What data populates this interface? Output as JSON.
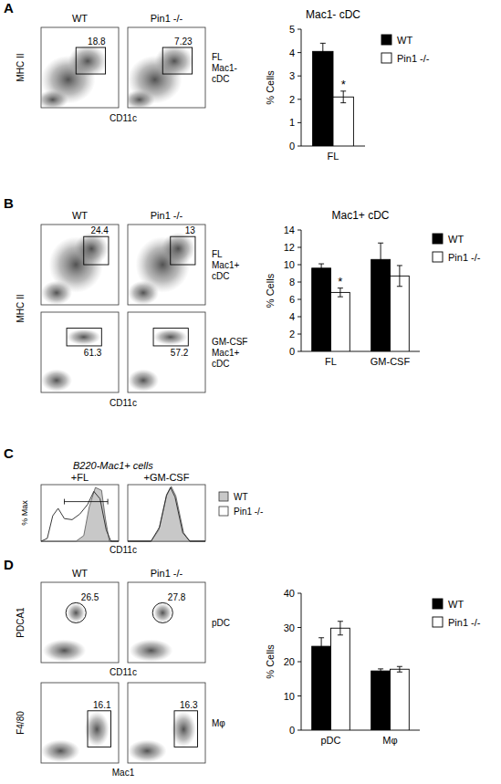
{
  "panels": [
    {
      "label": "A",
      "columns": [
        "WT",
        "Pin1 -/-"
      ],
      "x_label": "CD11c",
      "y_label": "MHC II",
      "rows": [
        {
          "side_label": [
            "FL",
            "Mac1-",
            "cDC"
          ],
          "gate_values": [
            18.8,
            7.23
          ]
        }
      ]
    },
    {
      "label": "B",
      "columns": [
        "WT",
        "Pin1 -/-"
      ],
      "x_label": "CD11c",
      "y_label": "MHC II",
      "rows": [
        {
          "side_label": [
            "FL",
            "Mac1+",
            "cDC"
          ],
          "gate_values": [
            24.4,
            13
          ]
        },
        {
          "side_label": [
            "GM-CSF",
            "Mac1+",
            "cDC"
          ],
          "gate_values": [
            61.3,
            57.2
          ]
        }
      ]
    },
    {
      "label": "C",
      "title": "B220-Mac1+ cells",
      "columns": [
        "+FL",
        "+GM-CSF"
      ],
      "x_label": "CD11c",
      "y_label": "% Max",
      "legend": [
        {
          "name": "WT",
          "color": "#c8c8c8"
        },
        {
          "name": "Pin1 -/-",
          "color": "#ffffff"
        }
      ]
    },
    {
      "label": "D",
      "columns": [
        "WT",
        "Pin1 -/-"
      ],
      "rows": [
        {
          "x_label": "CD11c",
          "y_label": "PDCA1",
          "side_label": [
            "pDC"
          ],
          "gate_values": [
            26.5,
            27.8
          ]
        },
        {
          "x_label": "Mac1",
          "y_label": "F4/80",
          "side_label": [
            "Mφ"
          ],
          "gate_values": [
            16.1,
            16.3
          ]
        }
      ]
    }
  ],
  "chart_data": [
    {
      "type": "bar",
      "title": "Mac1- cDC",
      "y_label": "% Cells",
      "categories": [
        "FL"
      ],
      "series": [
        {
          "name": "WT",
          "color": "#000000",
          "values": [
            4.05
          ],
          "errors": [
            0.35
          ]
        },
        {
          "name": "Pin1 -/-",
          "color": "#ffffff",
          "values": [
            2.1
          ],
          "errors": [
            0.25
          ],
          "significance": [
            "*"
          ]
        }
      ],
      "ylim": [
        0,
        5
      ],
      "yticks": [
        0,
        1,
        2,
        3,
        4,
        5
      ],
      "grid": false,
      "legend": "right"
    },
    {
      "type": "bar",
      "title": "Mac1+ cDC",
      "y_label": "% Cells",
      "categories": [
        "FL",
        "GM-CSF"
      ],
      "series": [
        {
          "name": "WT",
          "color": "#000000",
          "values": [
            9.6,
            10.6
          ],
          "errors": [
            0.5,
            1.9
          ]
        },
        {
          "name": "Pin1 -/-",
          "color": "#ffffff",
          "values": [
            6.8,
            8.7
          ],
          "errors": [
            0.5,
            1.2
          ],
          "significance": [
            "*",
            null
          ]
        }
      ],
      "ylim": [
        0,
        14
      ],
      "yticks": [
        0,
        2,
        4,
        6,
        8,
        10,
        12,
        14
      ],
      "grid": false,
      "legend": "right"
    },
    {
      "type": "bar",
      "y_label": "% Cells",
      "categories": [
        "pDC",
        "Mφ"
      ],
      "series": [
        {
          "name": "WT",
          "color": "#000000",
          "values": [
            24.5,
            17.3
          ],
          "errors": [
            2.5,
            0.6
          ]
        },
        {
          "name": "Pin1 -/-",
          "color": "#ffffff",
          "values": [
            29.8,
            17.8
          ],
          "errors": [
            2.0,
            0.8
          ]
        }
      ],
      "ylim": [
        0,
        40
      ],
      "yticks": [
        0,
        10,
        20,
        30,
        40
      ],
      "grid": false,
      "legend": "right"
    }
  ]
}
